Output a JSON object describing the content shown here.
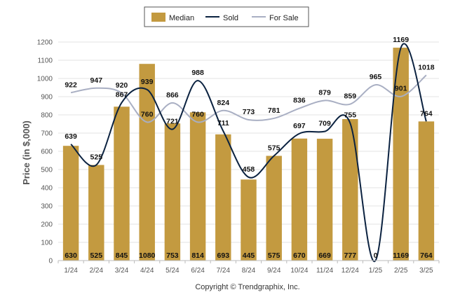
{
  "chart_data": {
    "type": "bar",
    "categories": [
      "1/24",
      "2/24",
      "3/24",
      "4/24",
      "5/24",
      "6/24",
      "7/24",
      "8/24",
      "9/24",
      "10/24",
      "11/24",
      "12/24",
      "1/25",
      "2/25",
      "3/25"
    ],
    "ylabel": "Price (in $,000)",
    "ylim": [
      0,
      1200
    ],
    "yticks": [
      0,
      100,
      200,
      300,
      400,
      500,
      600,
      700,
      800,
      900,
      1000,
      1100,
      1200
    ],
    "grid": true,
    "legend_position": "top-center",
    "series": [
      {
        "name": "Median",
        "kind": "bar",
        "color": "#C39A40",
        "values": [
          630,
          525,
          845,
          1080,
          753,
          814,
          693,
          445,
          575,
          670,
          669,
          777,
          0,
          1169,
          764
        ],
        "labels": [
          "630",
          "525",
          "845",
          "1080",
          "753",
          "814",
          "693",
          "445",
          "575",
          "670",
          "669",
          "777",
          "0",
          "1169",
          "764"
        ]
      },
      {
        "name": "Sold",
        "kind": "line",
        "color": "#0B2240",
        "values": [
          639,
          525,
          867,
          939,
          721,
          988,
          711,
          458,
          575,
          697,
          709,
          755,
          0,
          1169,
          764
        ],
        "labels": [
          "639",
          "525",
          "867",
          "939",
          "721",
          "988",
          "711",
          "458",
          "575",
          "697",
          "709",
          "755",
          "",
          "1169",
          "764"
        ]
      },
      {
        "name": "For Sale",
        "kind": "line",
        "color": "#A9AFC3",
        "values": [
          922,
          947,
          920,
          760,
          866,
          760,
          824,
          773,
          781,
          836,
          879,
          859,
          965,
          901,
          1018
        ],
        "labels": [
          "922",
          "947",
          "920",
          "760",
          "866",
          "760",
          "824",
          "773",
          "781",
          "836",
          "879",
          "859",
          "965",
          "901",
          "1018"
        ]
      }
    ]
  },
  "footer": "Copyright © Trendgraphix, Inc."
}
